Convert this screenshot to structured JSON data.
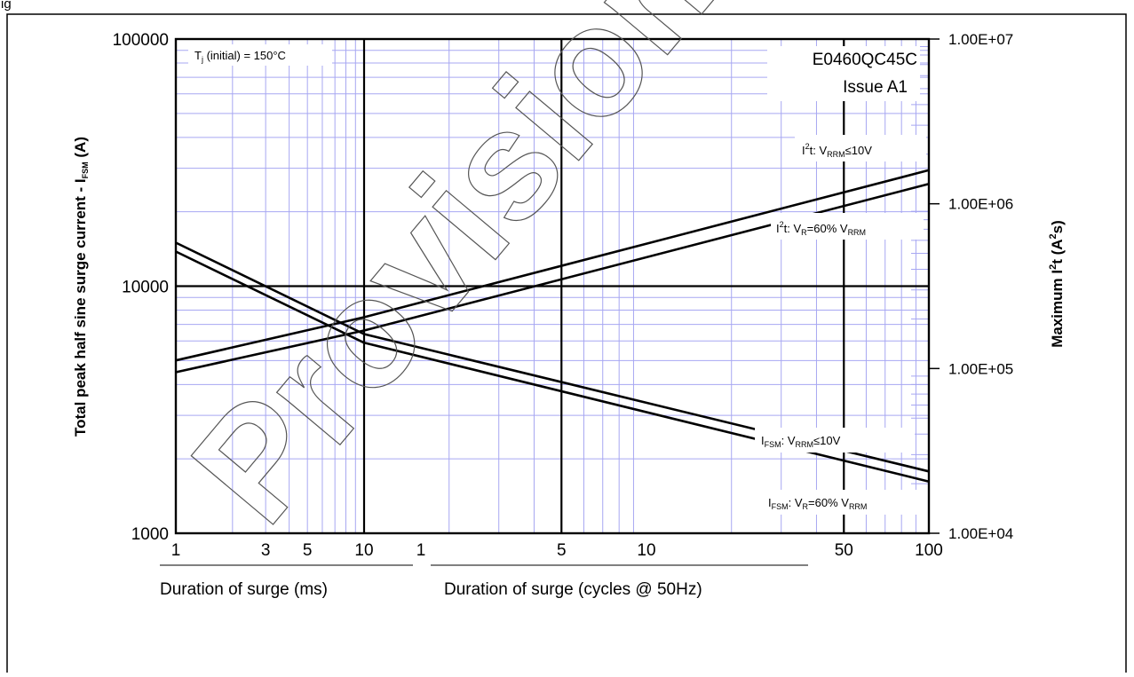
{
  "header_text": "ig",
  "chart_data": {
    "type": "line",
    "title": "",
    "watermark": "Provisional",
    "device_code": "E0460QC45C",
    "issue": "Issue A1",
    "condition_label": "Tj (initial) = 150°C",
    "condition_parts": {
      "pre": "T",
      "sub": "j",
      "post": " (initial) = 150°C"
    },
    "y_left": {
      "label": "Total peak half sine surge current - IFSM (A)",
      "label_parts": {
        "main": "Total peak half sine surge current - I",
        "sub": "FSM",
        "post": " (A)"
      },
      "scale": "log",
      "range": [
        1000,
        100000
      ],
      "ticks": [
        "1000",
        "10000",
        "100000"
      ]
    },
    "y_right": {
      "label": "Maximum I2t (A2s)",
      "label_parts": {
        "a": "Maximum I",
        "sup1": "2",
        "b": "t (A",
        "sup2": "2",
        "c": "s)"
      },
      "scale": "log",
      "range": [
        10000,
        10000000
      ],
      "ticks": [
        "1.00E+04",
        "1.00E+05",
        "1.00E+06",
        "1.00E+07"
      ]
    },
    "x_ms": {
      "label": "Duration of surge (ms)",
      "scale": "log",
      "range": [
        1,
        10
      ],
      "ticks": [
        "1",
        "3",
        "5",
        "10"
      ]
    },
    "x_cycles": {
      "label": "Duration of surge (cycles @ 50Hz)",
      "scale": "log",
      "range": [
        1,
        100
      ],
      "ticks": [
        "1",
        "5",
        "10",
        "50",
        "100"
      ]
    },
    "series": [
      {
        "name": "IFSM: VRRM≤10V",
        "axis": "left",
        "points_ms": [
          [
            1,
            15000
          ],
          [
            10,
            6400
          ]
        ],
        "points_cycles": [
          [
            1,
            6400
          ],
          [
            100,
            1780
          ]
        ],
        "label_parts": {
          "a": "I",
          "s1": "FSM",
          "b": ": V",
          "s2": "RRM",
          "c": "≤10V"
        }
      },
      {
        "name": "IFSM: VR=60% VRRM",
        "axis": "left",
        "points_ms": [
          [
            1,
            13800
          ],
          [
            10,
            5900
          ]
        ],
        "points_cycles": [
          [
            1,
            5900
          ],
          [
            100,
            1620
          ]
        ],
        "label_parts": {
          "a": "I",
          "s1": "FSM",
          "b": ": V",
          "s2": "R",
          "c": "=60% V",
          "s3": "RRM"
        }
      },
      {
        "name": "I2t: VRRM≤10V",
        "axis": "right",
        "points_ms": [
          [
            1,
            112000
          ],
          [
            10,
            205000
          ]
        ],
        "points_cycles": [
          [
            1,
            205000
          ],
          [
            100,
            1600000
          ]
        ],
        "label_parts": {
          "a": "I",
          "sup": "2",
          "b": "t: V",
          "s1": "RRM",
          "c": "≤10V"
        }
      },
      {
        "name": "I2t: VR=60% VRRM",
        "axis": "right",
        "points_ms": [
          [
            1,
            95000
          ],
          [
            10,
            170000
          ]
        ],
        "points_cycles": [
          [
            1,
            170000
          ],
          [
            100,
            1320000
          ]
        ],
        "label_parts": {
          "a": "I",
          "sup": "2",
          "b": "t: V",
          "s1": "R",
          "c": "=60% V",
          "s2": "RRM"
        }
      }
    ],
    "grid": true,
    "legend": "none"
  }
}
